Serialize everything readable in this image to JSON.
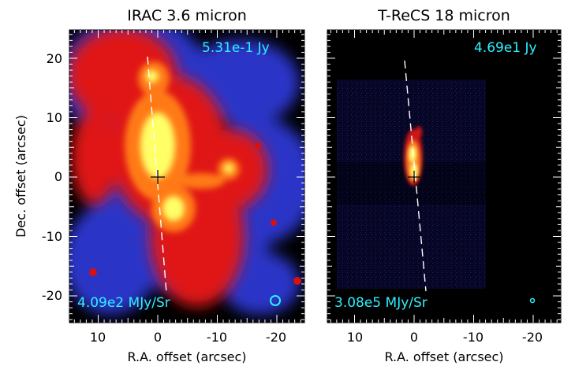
{
  "panels": [
    {
      "title": "IRAC 3.6 micron",
      "flux_label": "5.31e-1 Jy",
      "scale_label": "4.09e2 MJy/Sr",
      "x_ticks": [
        "10",
        "0",
        "-10",
        "-20"
      ],
      "y_ticks": [
        "20",
        "10",
        "0",
        "-10",
        "-20"
      ],
      "colormap": [
        "#000000",
        "#2030c0",
        "#e01010",
        "#ff8010",
        "#ffff60"
      ]
    },
    {
      "title": "T-ReCS 18 micron",
      "flux_label": "4.69e1 Jy",
      "scale_label": "3.08e5 MJy/Sr",
      "x_ticks": [
        "10",
        "0",
        "-10",
        "-20"
      ]
    }
  ],
  "x_axis_label": "R.A. offset (arcsec)",
  "y_axis_label": "Dec. offset (arcsec)",
  "label_color": "#2ef0ff"
}
